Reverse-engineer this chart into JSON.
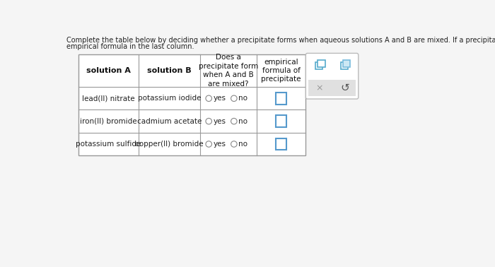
{
  "title_line1": "Complete the table below by deciding whether a precipitate forms when aqueous solutions A and B are mixed. If a precipitate will form, enter its",
  "title_line2": "empirical formula in the last column.",
  "col_headers": [
    "solution A",
    "solution B",
    "Does a\nprecipitate form\nwhen A and B\nare mixed?",
    "empirical\nformula of\nprecipitate"
  ],
  "rows": [
    [
      "lead(II) nitrate",
      "potassium iodide"
    ],
    [
      "iron(II) bromide",
      "cadmium acetate"
    ],
    [
      "potassium sulfide",
      "copper(II) bromide"
    ]
  ],
  "bg_color": "#f5f5f5",
  "table_border_color": "#999999",
  "text_color": "#222222",
  "header_text_color": "#111111",
  "circle_edge_color": "#888888",
  "input_box_color": "#5599cc",
  "side_panel_bg": "#ffffff",
  "side_panel_border": "#bbbbbb",
  "side_panel_inner_bg": "#e0e0e0",
  "icon_color": "#55aacc",
  "icon_color2": "#77bbdd",
  "x_color": "#999999",
  "refresh_color": "#555555"
}
